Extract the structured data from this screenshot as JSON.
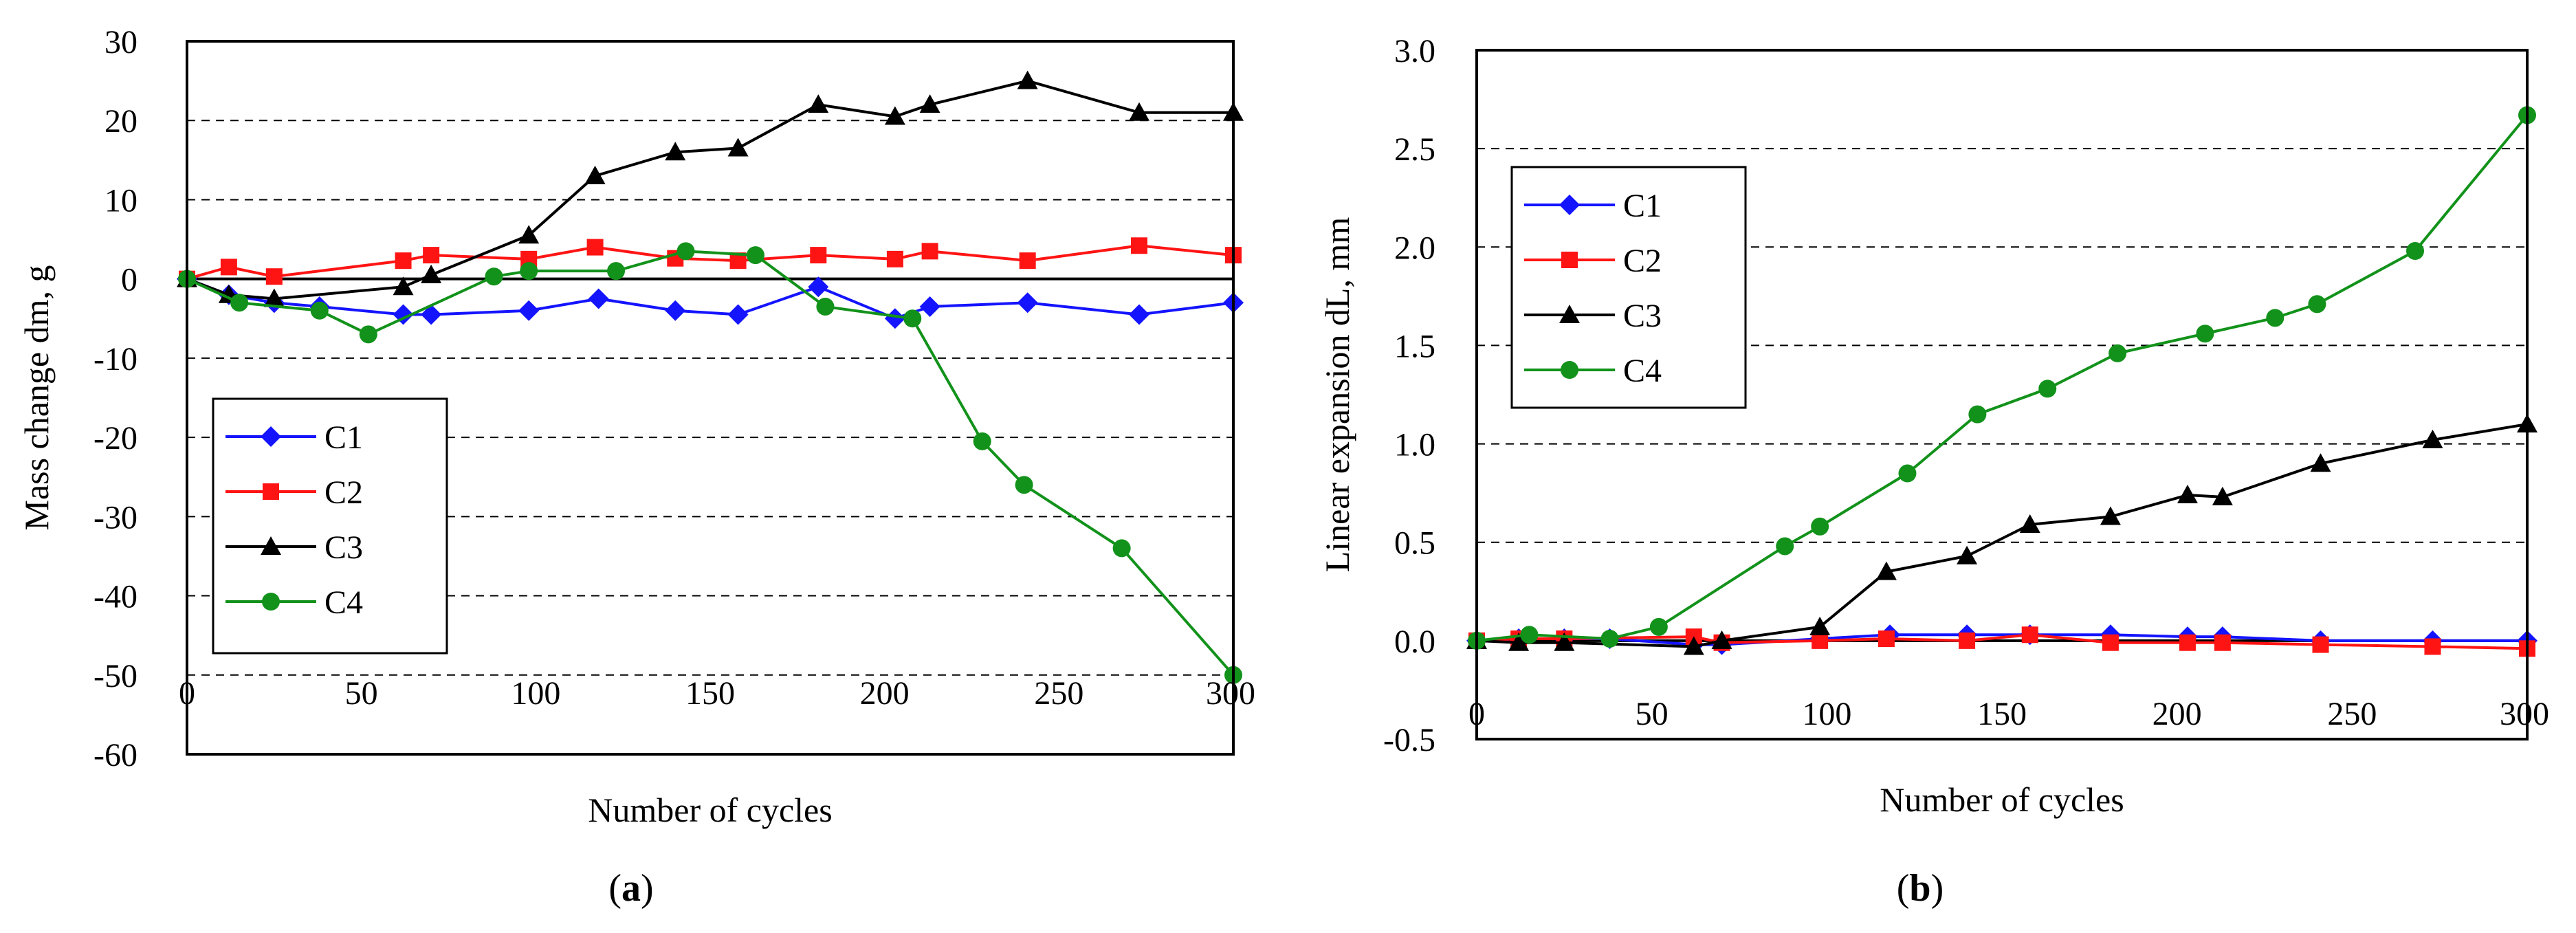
{
  "colors": {
    "C1": "#1414ff",
    "C2": "#ff1414",
    "C3": "#000000",
    "C4": "#12921a",
    "grid": "#000000",
    "axis": "#000000"
  },
  "chart_data": [
    {
      "type": "line",
      "panel_label": "a",
      "xlabel": "Number of cycles",
      "ylabel": "Mass change dm, g",
      "xlim": [
        0,
        300
      ],
      "ylim": [
        -60,
        30
      ],
      "xticks": [
        0,
        50,
        100,
        150,
        200,
        250,
        300
      ],
      "xtick_labels": [
        "0",
        "50",
        "100",
        "150",
        "200",
        "250",
        "300"
      ],
      "yticks": [
        -60,
        -50,
        -40,
        -30,
        -20,
        -10,
        0,
        10,
        20,
        30
      ],
      "ytick_labels": [
        "-60",
        "-50",
        "-40",
        "-30",
        "-20",
        "-10",
        "0",
        "10",
        "20",
        "30"
      ],
      "grid": "horizontal dashed",
      "legend": "lower-left",
      "series": [
        {
          "name": "C1",
          "marker": "diamond",
          "x": [
            0,
            12,
            25,
            38,
            62,
            70,
            98,
            118,
            140,
            158,
            181,
            203,
            213,
            241,
            273,
            300
          ],
          "y": [
            0,
            -2,
            -3,
            -3.5,
            -4.5,
            -4.5,
            -4,
            -2.5,
            -4,
            -4.5,
            -1,
            -5,
            -3.5,
            -3,
            -4.5,
            -3
          ]
        },
        {
          "name": "C2",
          "marker": "square",
          "x": [
            0,
            12,
            25,
            62,
            70,
            98,
            117,
            140,
            158,
            181,
            203,
            213,
            241,
            273,
            300
          ],
          "y": [
            0,
            1.5,
            0.3,
            2.3,
            3,
            2.5,
            4,
            2.6,
            2.3,
            3,
            2.5,
            3.5,
            2.3,
            4.2,
            3
          ]
        },
        {
          "name": "C3",
          "marker": "triangle",
          "x": [
            0,
            12,
            25,
            62,
            70,
            98,
            117,
            140,
            158,
            181,
            203,
            213,
            241,
            273,
            300
          ],
          "y": [
            0,
            -2,
            -2.5,
            -1,
            0.5,
            5.5,
            13,
            16,
            16.5,
            22,
            20.5,
            22,
            25,
            21,
            21
          ]
        },
        {
          "name": "C4",
          "marker": "circle",
          "x": [
            0,
            15,
            38,
            52,
            88,
            98,
            123,
            143,
            163,
            183,
            208,
            228,
            240,
            268,
            300
          ],
          "y": [
            0,
            -3,
            -4,
            -7,
            0.3,
            1,
            1,
            3.5,
            3,
            -3.5,
            -5,
            -20.5,
            -26,
            -34,
            -50
          ]
        }
      ]
    },
    {
      "type": "line",
      "panel_label": "b",
      "xlabel": "Number of cycles",
      "ylabel": "Linear expansion dL, mm",
      "xlim": [
        0,
        300
      ],
      "ylim": [
        -0.5,
        3.0
      ],
      "xticks": [
        0,
        50,
        100,
        150,
        200,
        250,
        300
      ],
      "xtick_labels": [
        "0",
        "50",
        "100",
        "150",
        "200",
        "250",
        "300"
      ],
      "yticks": [
        -0.5,
        0,
        0.5,
        1.0,
        1.5,
        2.0,
        2.5,
        3.0
      ],
      "ytick_labels": [
        "-0.5",
        "0.0",
        "0.5",
        "1.0",
        "1.5",
        "2.0",
        "2.5",
        "3.0"
      ],
      "grid": "horizontal dashed",
      "legend": "upper-left",
      "series": [
        {
          "name": "C1",
          "marker": "diamond",
          "x": [
            0,
            12,
            25,
            38,
            62,
            70,
            98,
            118,
            140,
            158,
            181,
            203,
            213,
            241,
            273,
            300
          ],
          "y": [
            0,
            0.01,
            0.01,
            0.01,
            -0.02,
            -0.02,
            0.01,
            0.03,
            0.03,
            0.03,
            0.03,
            0.02,
            0.02,
            0,
            0,
            0
          ]
        },
        {
          "name": "C2",
          "marker": "square",
          "x": [
            0,
            12,
            25,
            62,
            70,
            98,
            117,
            140,
            158,
            181,
            203,
            213,
            241,
            273,
            300
          ],
          "y": [
            0,
            0.01,
            0.01,
            0.02,
            -0.01,
            0,
            0.01,
            0,
            0.03,
            -0.01,
            -0.01,
            -0.01,
            -0.02,
            -0.03,
            -0.04
          ]
        },
        {
          "name": "C3",
          "marker": "triangle",
          "x": [
            0,
            12,
            25,
            62,
            70,
            98,
            117,
            140,
            158,
            181,
            203,
            213,
            241,
            273,
            300
          ],
          "y": [
            0,
            -0.01,
            -0.01,
            -0.03,
            0,
            0.07,
            0.35,
            0.43,
            0.59,
            0.63,
            0.74,
            0.73,
            0.9,
            1.02,
            1.1
          ]
        },
        {
          "name": "C4",
          "marker": "circle",
          "x": [
            0,
            15,
            38,
            52,
            88,
            98,
            123,
            143,
            163,
            183,
            208,
            228,
            240,
            268,
            300
          ],
          "y": [
            0,
            0.03,
            0.01,
            0.07,
            0.48,
            0.58,
            0.85,
            1.15,
            1.28,
            1.46,
            1.56,
            1.64,
            1.71,
            1.98,
            2.67
          ]
        }
      ]
    }
  ]
}
